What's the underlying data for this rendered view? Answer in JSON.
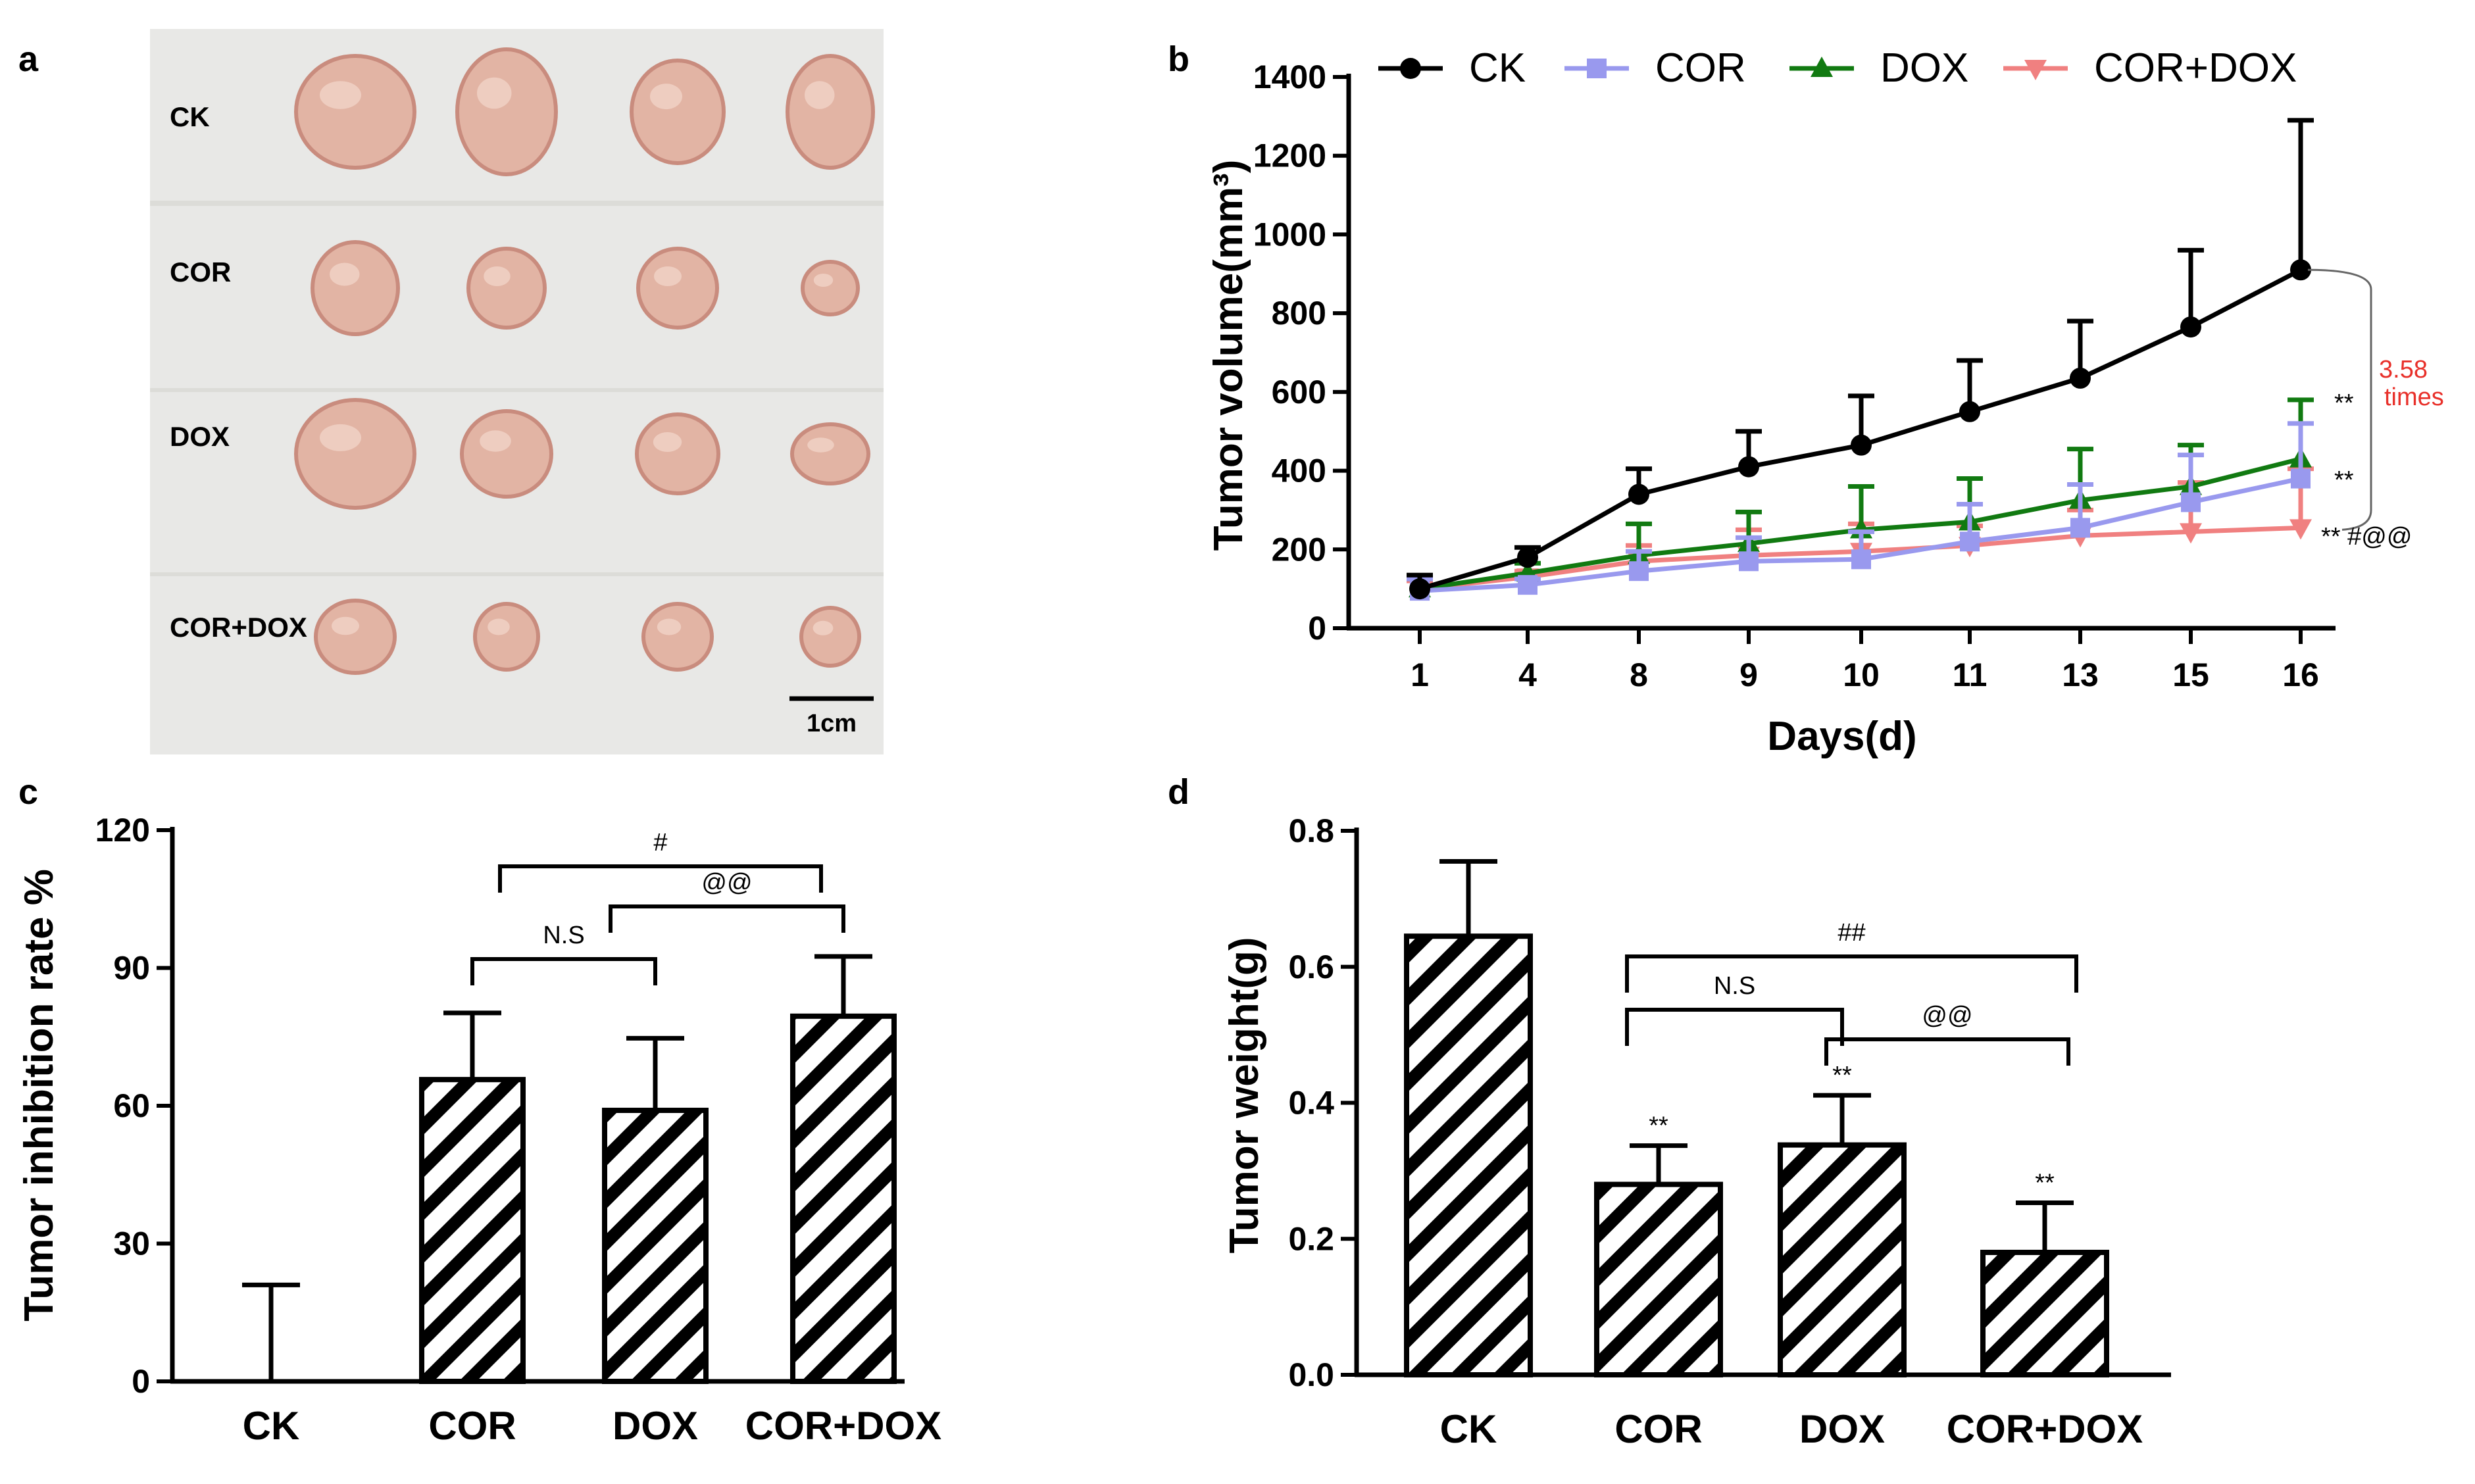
{
  "panels": {
    "a": {
      "label": "a",
      "rows": [
        "CK",
        "COR",
        "DOX",
        "COR+DOX"
      ],
      "scale_bar": "1cm",
      "colors": {
        "background": "#e8e8e6",
        "tumor": "#e2b4a4",
        "tumor_dark": "#c98c7e"
      }
    },
    "b": {
      "label": "b"
    },
    "c": {
      "label": "c"
    },
    "d": {
      "label": "d"
    }
  },
  "chart_data": [
    {
      "id": "b",
      "type": "line",
      "title": "",
      "xlabel": "Days(d)",
      "ylabel": "Tumor volume(mm³)",
      "categories": [
        "1",
        "4",
        "8",
        "9",
        "10",
        "11",
        "13",
        "15",
        "16"
      ],
      "ylim": [
        0,
        1400
      ],
      "yticks": [
        0,
        200,
        400,
        600,
        800,
        1000,
        1200,
        1400
      ],
      "legend_position": "top",
      "series": [
        {
          "name": "CK",
          "color": "#000000",
          "marker": "circle",
          "values": [
            100,
            180,
            340,
            410,
            465,
            550,
            635,
            765,
            910
          ],
          "errors": [
            35,
            25,
            65,
            90,
            125,
            130,
            145,
            195,
            380
          ]
        },
        {
          "name": "COR",
          "color": "#9999ee",
          "marker": "square",
          "values": [
            95,
            110,
            145,
            170,
            175,
            220,
            255,
            320,
            380
          ],
          "errors": [
            30,
            15,
            50,
            60,
            70,
            95,
            110,
            120,
            140
          ]
        },
        {
          "name": "DOX",
          "color": "#117a11",
          "marker": "triangle-up",
          "values": [
            100,
            140,
            185,
            215,
            250,
            270,
            325,
            360,
            430
          ],
          "errors": [
            25,
            25,
            80,
            80,
            110,
            110,
            130,
            105,
            150
          ]
        },
        {
          "name": "COR+DOX",
          "color": "#f08080",
          "marker": "triangle-down",
          "values": [
            100,
            130,
            170,
            185,
            195,
            210,
            235,
            245,
            255
          ],
          "errors": [
            20,
            15,
            40,
            65,
            70,
            50,
            65,
            125,
            150
          ]
        }
      ],
      "annotations": {
        "fold": "3.58",
        "fold_unit": "times",
        "dox_sig": "**",
        "cor_sig": "**",
        "combo_sig": "** #@@"
      }
    },
    {
      "id": "c",
      "type": "bar",
      "title": "",
      "xlabel": "",
      "ylabel": "Tumor inhibition rate %",
      "categories": [
        "CK",
        "COR",
        "DOX",
        "COR+DOX"
      ],
      "values": [
        0,
        65.7,
        59,
        79.5
      ],
      "errors": [
        21,
        14.5,
        15.7,
        13
      ],
      "ylim": [
        0,
        120
      ],
      "yticks": [
        0,
        30,
        60,
        90,
        120
      ],
      "brackets": [
        {
          "from": 1,
          "to": 2,
          "text": "N.S"
        },
        {
          "from": 2,
          "to": 3,
          "text": "@@"
        },
        {
          "from": 1,
          "to": 3,
          "text": "#"
        }
      ]
    },
    {
      "id": "d",
      "type": "bar",
      "title": "",
      "xlabel": "",
      "ylabel": "Tumor weight(g)",
      "categories": [
        "CK",
        "COR",
        "DOX",
        "COR+DOX"
      ],
      "values": [
        0.645,
        0.28,
        0.338,
        0.18
      ],
      "errors": [
        0.11,
        0.057,
        0.073,
        0.073
      ],
      "ylim": [
        0,
        0.8
      ],
      "yticks": [
        "0.0",
        "0.2",
        "0.4",
        "0.6",
        "0.8"
      ],
      "bar_labels": [
        "",
        "**",
        "**",
        "**"
      ],
      "brackets": [
        {
          "from": 1,
          "to": 2,
          "text": "N.S"
        },
        {
          "from": 2,
          "to": 3,
          "text": "@@"
        },
        {
          "from": 1,
          "to": 3,
          "text": "##"
        }
      ]
    }
  ]
}
